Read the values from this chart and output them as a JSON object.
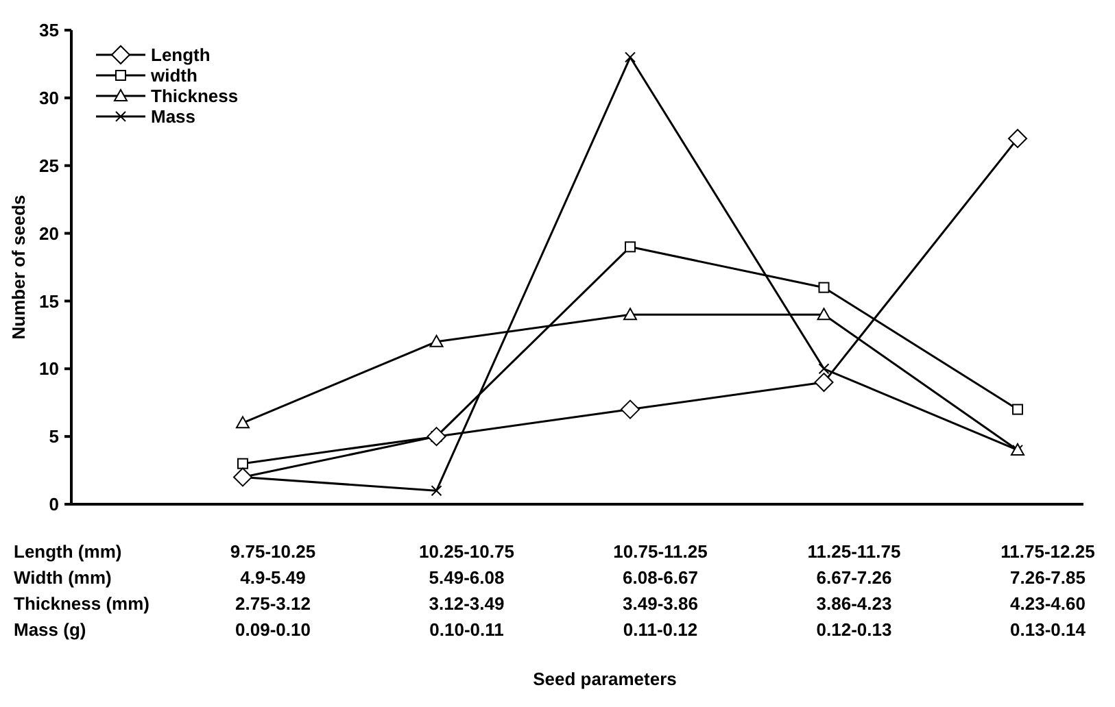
{
  "chart_data": {
    "type": "line",
    "xlabel": "Seed parameters",
    "ylabel": "Number of seeds",
    "categories": [
      "9.75-10.25\n4.9-5.49\n2.75-3.12\n0.09-0.10",
      "10.25-10.75\n5.49-6.08\n3.12-3.49\n0.10-0.11",
      "10.75-11.25\n6.08-6.67\n3.49-3.86\n0.11-0.12",
      "11.25-11.75\n6.67-7.26\n3.86-4.23\n0.12-0.13",
      "11.75-12.25\n7.26-7.85\n4.23-4.60\n0.13-0.14"
    ],
    "annotations": [
      "Length (mm)\nWidth (mm)\nThickness (mm)\nMass (g)"
    ],
    "series": [
      {
        "name": "Length",
        "color": "#000000",
        "marker": "diamond",
        "values": [
          2,
          5,
          7,
          9,
          27
        ]
      },
      {
        "name": "width",
        "color": "#000000",
        "marker": "square",
        "values": [
          3,
          5,
          19,
          16,
          7
        ]
      },
      {
        "name": "Thickness",
        "color": "#000000",
        "marker": "triangle",
        "values": [
          6,
          12,
          14,
          14,
          4
        ]
      },
      {
        "name": "Mass",
        "color": "#000000",
        "marker": "cross",
        "values": [
          2,
          1,
          33,
          10,
          4
        ]
      }
    ],
    "ylim": [
      0,
      35
    ],
    "yticks": [
      0,
      5,
      10,
      15,
      20,
      25,
      30,
      35
    ],
    "grid": false,
    "legend": "top left",
    "line_style": "solid"
  }
}
